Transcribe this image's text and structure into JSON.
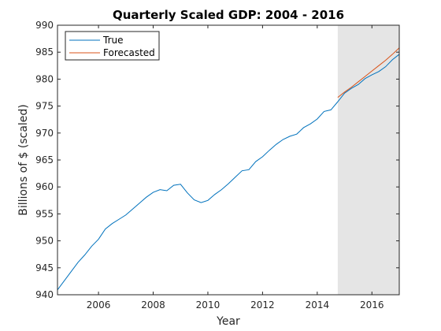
{
  "chart_data": {
    "type": "line",
    "title": "Quarterly Scaled GDP: 2004 - 2016",
    "xlabel": "Year",
    "ylabel": "Billions of $ (scaled)",
    "xlim": [
      2004.5,
      2017.0
    ],
    "ylim": [
      940,
      990
    ],
    "x_ticks": [
      2006,
      2008,
      2010,
      2012,
      2014,
      2016
    ],
    "y_ticks": [
      940,
      945,
      950,
      955,
      960,
      965,
      970,
      975,
      980,
      985,
      990
    ],
    "grid": false,
    "legend_position": "top-left",
    "forecast_region": {
      "x_start": 2014.75,
      "x_end": 2017.0,
      "color": "#e5e5e5"
    },
    "series": [
      {
        "name": "True",
        "color": "#0072bd",
        "points": [
          [
            2004.5,
            940.9
          ],
          [
            2004.75,
            942.6
          ],
          [
            2005.0,
            944.3
          ],
          [
            2005.25,
            946.0
          ],
          [
            2005.5,
            947.4
          ],
          [
            2005.75,
            949.0
          ],
          [
            2006.0,
            950.3
          ],
          [
            2006.25,
            952.2
          ],
          [
            2006.5,
            953.2
          ],
          [
            2006.75,
            954.0
          ],
          [
            2007.0,
            954.8
          ],
          [
            2007.25,
            955.9
          ],
          [
            2007.5,
            957.0
          ],
          [
            2007.75,
            958.1
          ],
          [
            2008.0,
            959.0
          ],
          [
            2008.25,
            959.5
          ],
          [
            2008.5,
            959.3
          ],
          [
            2008.75,
            960.3
          ],
          [
            2009.0,
            960.5
          ],
          [
            2009.25,
            958.9
          ],
          [
            2009.5,
            957.6
          ],
          [
            2009.75,
            957.1
          ],
          [
            2010.0,
            957.5
          ],
          [
            2010.25,
            958.6
          ],
          [
            2010.5,
            959.5
          ],
          [
            2010.75,
            960.6
          ],
          [
            2011.0,
            961.8
          ],
          [
            2011.25,
            963.0
          ],
          [
            2011.5,
            963.2
          ],
          [
            2011.75,
            964.7
          ],
          [
            2012.0,
            965.6
          ],
          [
            2012.25,
            966.8
          ],
          [
            2012.5,
            967.9
          ],
          [
            2012.75,
            968.8
          ],
          [
            2013.0,
            969.4
          ],
          [
            2013.25,
            969.8
          ],
          [
            2013.5,
            971.0
          ],
          [
            2013.75,
            971.7
          ],
          [
            2014.0,
            972.6
          ],
          [
            2014.25,
            974.0
          ],
          [
            2014.5,
            974.3
          ],
          [
            2014.75,
            975.8
          ],
          [
            2015.0,
            977.4
          ],
          [
            2015.25,
            978.3
          ],
          [
            2015.5,
            979.0
          ],
          [
            2015.75,
            980.1
          ],
          [
            2016.0,
            980.8
          ],
          [
            2016.25,
            981.4
          ],
          [
            2016.5,
            982.3
          ],
          [
            2016.75,
            983.6
          ],
          [
            2017.0,
            984.6
          ]
        ]
      },
      {
        "name": "Forecasted",
        "color": "#d95319",
        "points": [
          [
            2014.75,
            976.6
          ],
          [
            2015.0,
            977.6
          ],
          [
            2015.25,
            978.5
          ],
          [
            2015.5,
            979.5
          ],
          [
            2015.75,
            980.5
          ],
          [
            2016.0,
            981.5
          ],
          [
            2016.25,
            982.5
          ],
          [
            2016.5,
            983.5
          ],
          [
            2016.75,
            984.6
          ],
          [
            2017.0,
            985.8
          ]
        ]
      }
    ]
  }
}
